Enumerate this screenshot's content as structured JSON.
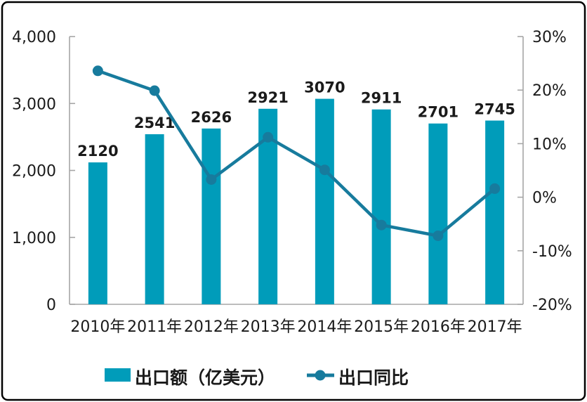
{
  "chart_data": {
    "type": "bar",
    "subtype": "bar+line combo",
    "categories": [
      "2010年",
      "2011年",
      "2012年",
      "2013年",
      "2014年",
      "2015年",
      "2016年",
      "2017年"
    ],
    "series": [
      {
        "name": "出口额（亿美元）",
        "type": "bar",
        "axis": "left",
        "color": "#009CBA",
        "values": [
          2120,
          2541,
          2626,
          2921,
          3070,
          2911,
          2701,
          2745
        ],
        "data_labels": [
          "2120",
          "2541",
          "2626",
          "2921",
          "3070",
          "2911",
          "2701",
          "2745"
        ]
      },
      {
        "name": "出口同比",
        "type": "line",
        "axis": "right",
        "color": "#177B9D",
        "marker": "circle",
        "values": [
          23.6,
          19.9,
          3.3,
          11.2,
          5.1,
          -5.2,
          -7.2,
          1.6
        ]
      }
    ],
    "left_axis": {
      "min": 0,
      "max": 4000,
      "tick_labels": [
        "4,000",
        "3,000",
        "2,000",
        "1,000",
        "0"
      ]
    },
    "right_axis": {
      "min": -20,
      "max": 30,
      "tick_labels": [
        "30%",
        "20%",
        "10%",
        "0%",
        "-10%",
        "-20%"
      ]
    },
    "title": "",
    "xlabel": "",
    "ylabel": "",
    "grid": false,
    "legend_position": "bottom",
    "legend": [
      {
        "label": "出口额（亿美元）",
        "swatch": "bar"
      },
      {
        "label": "出口同比",
        "swatch": "line-marker"
      }
    ],
    "style": {
      "bar_color": "#009CBA",
      "line_color": "#177B9D",
      "axis_line_color": "#A6A6A6",
      "text_color": "#1a1a1a",
      "frame_border_color": "#000000",
      "background": "#ffffff"
    }
  }
}
